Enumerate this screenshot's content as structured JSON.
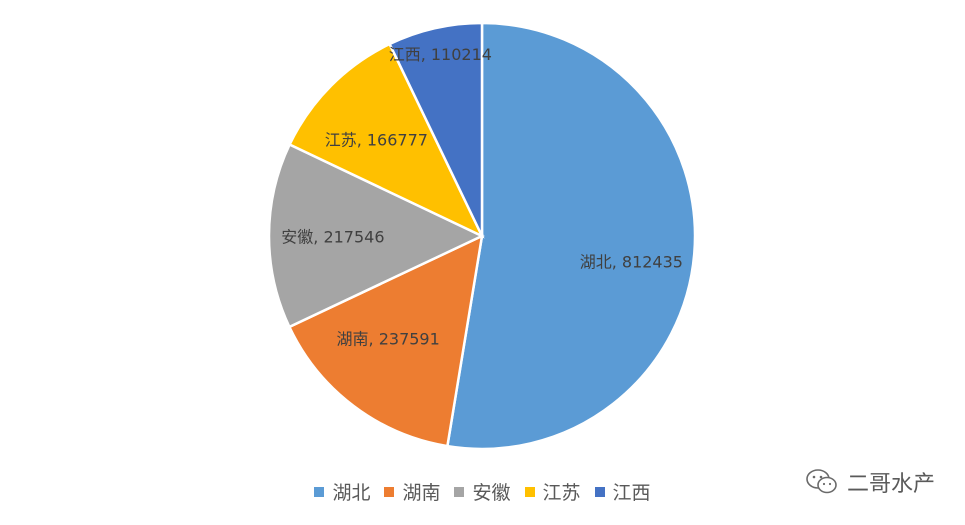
{
  "chart_data": {
    "type": "pie",
    "title": "",
    "categories": [
      "湖北",
      "湖南",
      "安徽",
      "江苏",
      "江西"
    ],
    "values": [
      812435,
      237591,
      217546,
      166777,
      110214
    ],
    "colors": [
      "#5b9bd5",
      "#ed7d31",
      "#a5a5a5",
      "#ffc000",
      "#4472c4"
    ],
    "data_labels": [
      "湖北, 812435",
      "湖南, 237591",
      "安徽, 217546",
      "江苏, 166777",
      "江西, 110214"
    ],
    "legend": {
      "position": "bottom",
      "entries": [
        "湖北",
        "湖南",
        "安徽",
        "江苏",
        "江西"
      ]
    }
  },
  "watermark": {
    "text": "二哥水产",
    "icon": "wechat-bubble-icon"
  }
}
